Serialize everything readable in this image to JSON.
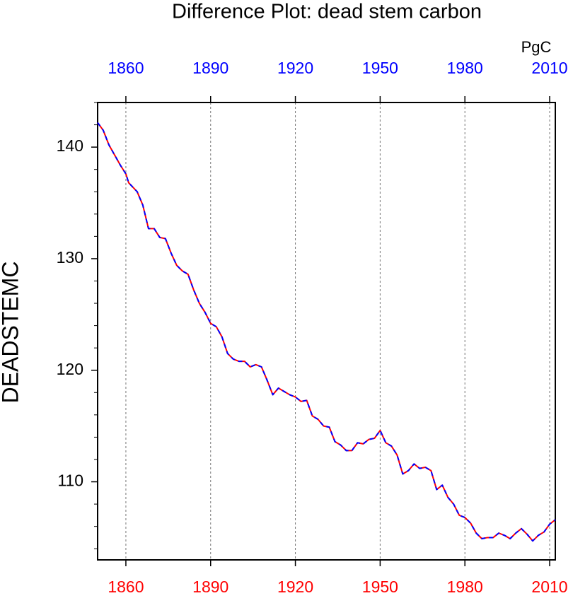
{
  "chart_data": {
    "type": "line",
    "title": "Difference Plot: dead stem carbon",
    "y_label": "DEADSTEMC",
    "units": "PgC",
    "x": [
      1850,
      1852,
      1854,
      1856,
      1858,
      1860,
      1861,
      1864,
      1866,
      1868,
      1870,
      1872,
      1874,
      1876,
      1878,
      1880,
      1882,
      1884,
      1886,
      1888,
      1890,
      1892,
      1894,
      1896,
      1898,
      1900,
      1902,
      1904,
      1906,
      1908,
      1910,
      1912,
      1914,
      1916,
      1918,
      1920,
      1922,
      1924,
      1926,
      1928,
      1930,
      1932,
      1934,
      1936,
      1938,
      1940,
      1942,
      1944,
      1946,
      1948,
      1950,
      1952,
      1954,
      1956,
      1958,
      1960,
      1962,
      1964,
      1966,
      1968,
      1970,
      1972,
      1974,
      1976,
      1978,
      1980,
      1982,
      1984,
      1986,
      1988,
      1990,
      1992,
      1994,
      1996,
      1998,
      2000,
      2002,
      2004,
      2006,
      2008,
      2010,
      2012
    ],
    "series": [
      {
        "color": "#ff0000",
        "dashed": false,
        "values": [
          142.2,
          141.5,
          140.2,
          139.3,
          138.4,
          137.6,
          136.8,
          136.0,
          134.8,
          132.7,
          132.7,
          131.9,
          131.8,
          130.5,
          129.4,
          128.9,
          128.6,
          127.2,
          126.0,
          125.2,
          124.2,
          123.9,
          123.0,
          121.5,
          121.0,
          120.8,
          120.8,
          120.3,
          120.5,
          120.3,
          119.1,
          117.8,
          118.4,
          118.1,
          117.8,
          117.6,
          117.2,
          117.3,
          115.9,
          115.6,
          115.0,
          114.9,
          113.6,
          113.3,
          112.8,
          112.8,
          113.5,
          113.4,
          113.8,
          113.9,
          114.6,
          113.5,
          113.2,
          112.4,
          110.7,
          111.0,
          111.6,
          111.2,
          111.3,
          111.0,
          109.3,
          109.7,
          108.6,
          108.0,
          107.0,
          106.8,
          106.3,
          105.4,
          104.9,
          105.0,
          105.0,
          105.4,
          105.2,
          104.9,
          105.4,
          105.8,
          105.3,
          104.7,
          105.2,
          105.5,
          106.2,
          106.6
        ]
      },
      {
        "color": "#0000ff",
        "dashed": true,
        "values": [
          142.2,
          141.5,
          140.2,
          139.3,
          138.4,
          137.6,
          136.8,
          136.0,
          134.8,
          132.7,
          132.7,
          131.9,
          131.8,
          130.5,
          129.4,
          128.9,
          128.6,
          127.2,
          126.0,
          125.2,
          124.2,
          123.9,
          123.0,
          121.5,
          121.0,
          120.8,
          120.8,
          120.3,
          120.5,
          120.3,
          119.1,
          117.8,
          118.4,
          118.1,
          117.8,
          117.6,
          117.2,
          117.3,
          115.9,
          115.6,
          115.0,
          114.9,
          113.6,
          113.3,
          112.8,
          112.8,
          113.5,
          113.4,
          113.8,
          113.9,
          114.6,
          113.5,
          113.2,
          112.4,
          110.7,
          111.0,
          111.6,
          111.2,
          111.3,
          111.0,
          109.3,
          109.7,
          108.6,
          108.0,
          107.0,
          106.8,
          106.3,
          105.4,
          104.9,
          105.0,
          105.0,
          105.4,
          105.2,
          104.9,
          105.4,
          105.8,
          105.3,
          104.7,
          105.2,
          105.5,
          106.2,
          106.6
        ]
      }
    ],
    "xlim": [
      1850,
      2012
    ],
    "xticks": [
      1860,
      1890,
      1920,
      1950,
      1980,
      2010
    ],
    "ylim": [
      103,
      144
    ],
    "yticks": [
      110,
      120,
      130,
      140
    ],
    "yminor": [
      104,
      106,
      108,
      112,
      114,
      116,
      118,
      122,
      124,
      126,
      128,
      132,
      134,
      136,
      138,
      142,
      144
    ],
    "top_tick_color": "#0000ff",
    "bottom_tick_color": "#ff0000",
    "xgrid": true
  }
}
